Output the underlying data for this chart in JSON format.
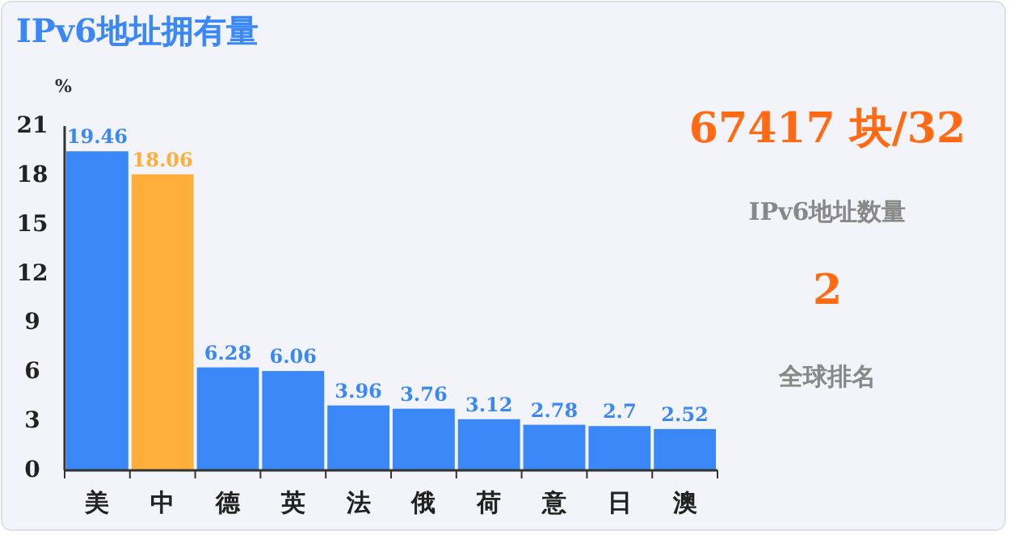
{
  "chart_data": [
    {
      "type": "bar",
      "title": "IPv6地址拥有量",
      "ylabel": "%",
      "categories": [
        "美",
        "中",
        "德",
        "英",
        "法",
        "俄",
        "荷",
        "意",
        "日",
        "澳"
      ],
      "values": [
        19.46,
        18.06,
        6.28,
        6.06,
        3.96,
        3.76,
        3.12,
        2.78,
        2.7,
        2.52
      ],
      "colors": [
        "#3a87f7",
        "#ffae3a",
        "#3a87f7",
        "#3a87f7",
        "#3a87f7",
        "#3a87f7",
        "#3a87f7",
        "#3a87f7",
        "#3a87f7",
        "#3a87f7"
      ],
      "ylim": [
        0,
        21
      ],
      "yticks": [
        0,
        3,
        6,
        9,
        12,
        15,
        18,
        21
      ],
      "data_labels": true,
      "grid": false
    },
    {
      "type": "other",
      "annotations": [
        "67417 块/32",
        "IPv6地址数量",
        "2",
        "全球排名"
      ]
    }
  ]
}
